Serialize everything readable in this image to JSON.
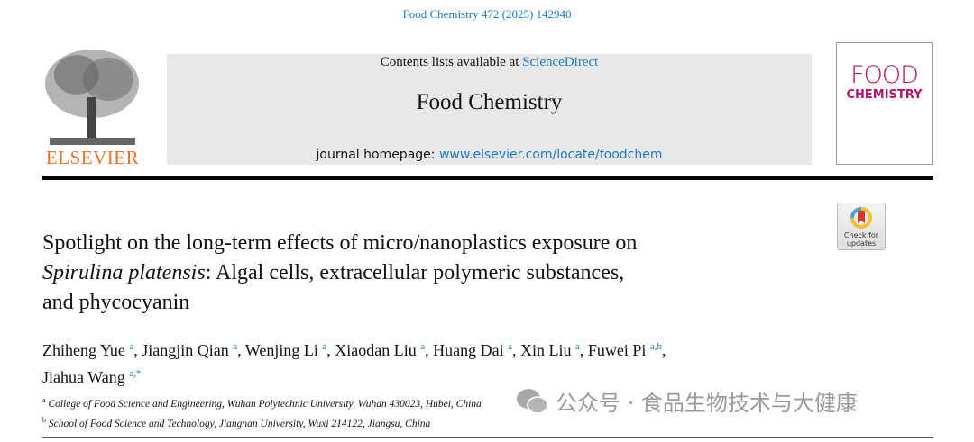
{
  "citation": "Food Chemistry 472 (2025) 142940",
  "publisher": {
    "logo_text": "ELSEVIER"
  },
  "masthead": {
    "contents_prefix": "Contents lists available at ",
    "contents_link": "ScienceDirect",
    "journal": "Food Chemistry",
    "homepage_prefix": "journal homepage: ",
    "homepage_link": "www.elsevier.com/locate/foodchem"
  },
  "cover": {
    "line1": "FOOD",
    "line2": "CHEMISTRY"
  },
  "check_updates": {
    "line1": "Check for",
    "line2": "updates"
  },
  "article": {
    "title_line1": "Spotlight on the long-term effects of micro/nanoplastics exposure on",
    "title_italic": "Spirulina platensis",
    "title_line2_rest": ": Algal cells, extracellular polymeric substances,",
    "title_line3": "and phycocyanin",
    "authors": [
      {
        "name": "Zhiheng Yue",
        "aff": "a"
      },
      {
        "name": "Jiangjin Qian",
        "aff": "a"
      },
      {
        "name": "Wenjing Li",
        "aff": "a"
      },
      {
        "name": "Xiaodan Liu",
        "aff": "a"
      },
      {
        "name": "Huang Dai",
        "aff": "a"
      },
      {
        "name": "Xin Liu",
        "aff": "a"
      },
      {
        "name": "Fuwei Pi",
        "aff": "a,b"
      },
      {
        "name": "Jiahua Wang",
        "aff": "a,*"
      }
    ],
    "affiliations": [
      {
        "mark": "a",
        "text": "College of Food Science and Engineering, Wuhan Polytechnic University, Wuhan 430023, Hubei, China"
      },
      {
        "mark": "b",
        "text": "School of Food Science and Technology, Jiangnan University, Wuxi 214122, Jiangsu, China"
      }
    ]
  },
  "watermark": "公众号 · 食品生物技术与大健康",
  "colors": {
    "link": "#1c7bc0",
    "elsevier": "#e8732a",
    "cover": "#b0166e"
  }
}
